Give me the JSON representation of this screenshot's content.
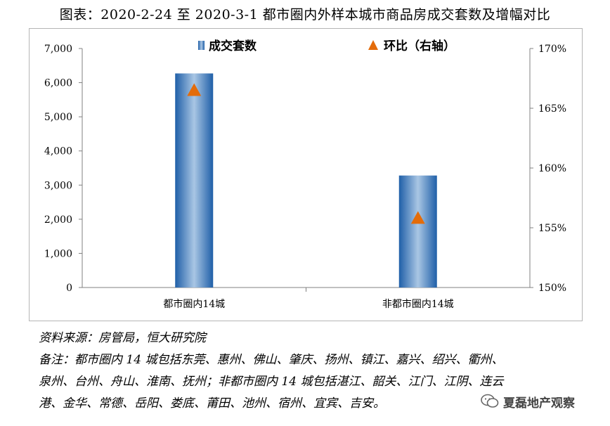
{
  "title": "图表：2020-2-24 至 2020-3-1 都市圈内外样本城市商品房成交套数及增幅对比",
  "chart_data": {
    "type": "bar",
    "categories": [
      "都市圈内14城",
      "非都市圈内14城"
    ],
    "series": [
      {
        "name": "成交套数",
        "type": "bar",
        "axis": "left",
        "values": [
          6270,
          3280
        ],
        "color": "#3a78bd"
      },
      {
        "name": "环比（右轴）",
        "type": "scatter",
        "marker": "triangle",
        "axis": "right",
        "values": [
          166.5,
          155.8
        ],
        "color": "#e46c0a"
      }
    ],
    "y_left": {
      "min": 0,
      "max": 7000,
      "ticks": [
        0,
        1000,
        2000,
        3000,
        4000,
        5000,
        6000,
        7000
      ],
      "tick_labels": [
        "0",
        "1,000",
        "2,000",
        "3,000",
        "4,000",
        "5,000",
        "6,000",
        "7,000"
      ]
    },
    "y_right": {
      "min": 150,
      "max": 170,
      "ticks": [
        150,
        155,
        160,
        165,
        170
      ],
      "tick_labels": [
        "150%",
        "155%",
        "160%",
        "165%",
        "170%"
      ]
    },
    "legend_position": "top",
    "grid": false
  },
  "footnotes": {
    "source": "资料来源：房管局，恒大研究院",
    "note_line1": "备注：都市圈内 14 城包括东莞、惠州、佛山、肇庆、扬州、镇江、嘉兴、绍兴、衢州、",
    "note_line2": "泉州、台州、舟山、淮南、抚州；非都市圈内 14 城包括湛江、韶关、江门、江阴、连云",
    "note_line3": "港、金华、常德、岳阳、娄底、莆田、池州、宿州、宜宾、吉安。"
  },
  "watermark": {
    "text": "夏磊地产观察",
    "icon": "wechat-icon"
  }
}
